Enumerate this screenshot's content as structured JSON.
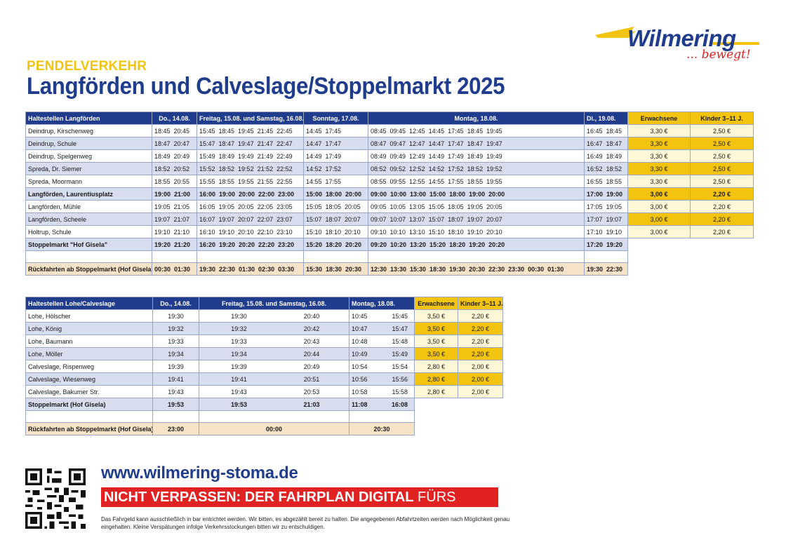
{
  "header": {
    "kicker": "PENDELVERKEHR",
    "title": "Langförden und Calveslage/Stoppelmarkt 2025",
    "logo_brand": "Wilmering",
    "logo_tagline": "... bewegt!"
  },
  "table1": {
    "headers": [
      "Haltestellen Langförden",
      "Do., 14.08.",
      "Freitag, 15.08. und Samstag, 16.08.",
      "Sonntag, 17.08.",
      "Montag, 18.08.",
      "Di., 19.08.",
      "Erwachsene",
      "Kinder 3–11 J."
    ],
    "rows": [
      {
        "stop": "Deindrup, Kirschenweg",
        "do": "18:45  20:45",
        "frsa": "15:45  18:45  19:45  21:45  22:45",
        "so": "14:45  17:45",
        "mo": "08:45  09:45  12:45  14:45  17:45  18:45  19:45",
        "di": "16:45  18:45",
        "adult": "3,30 €",
        "child": "2,50 €"
      },
      {
        "stop": "Deindrup, Schule",
        "do": "18:47  20:47",
        "frsa": "15:47  18:47  19:47  21:47  22:47",
        "so": "14:47  17:47",
        "mo": "08:47  09:47  12:47  14:47  17:47  18:47  19:47",
        "di": "16:47  18:47",
        "adult": "3,30 €",
        "child": "2,50 €"
      },
      {
        "stop": "Deindrup, Spelgenweg",
        "do": "18:49  20:49",
        "frsa": "15:49  18:49  19:49  21:49  22:49",
        "so": "14:49  17:49",
        "mo": "08:49  09:49  12:49  14:49  17:49  18:49  19:49",
        "di": "16:49  18:49",
        "adult": "3,30 €",
        "child": "2,50 €"
      },
      {
        "stop": "Spreda, Dr. Siemer",
        "do": "18:52  20:52",
        "frsa": "15:52  18:52  19:52  21:52  22:52",
        "so": "14:52  17:52",
        "mo": "08:52  09:52  12:52  14:52  17:52  18:52  19:52",
        "di": "16:52  18:52",
        "adult": "3,30 €",
        "child": "2,50 €"
      },
      {
        "stop": "Spreda, Moormann",
        "do": "18:55  20:55",
        "frsa": "15:55  18:55  19:55  21:55  22:55",
        "so": "14:55  17:55",
        "mo": "08:55  09:55  12:55  14:55  17:55  18:55  19:55",
        "di": "16:55  18:55",
        "adult": "3,30 €",
        "child": "2,50 €"
      },
      {
        "stop": "Langförden, Laurentiusplatz",
        "do": "19:00  21:00",
        "frsa": "16:00  19:00  20:00  22:00  23:00",
        "so": "15:00  18:00  20:00",
        "mo": "09:00  10:00  13:00  15:00  18:00  19:00  20:00",
        "di": "17:00  19:00",
        "adult": "3,00 €",
        "child": "2,20 €",
        "bold": true
      },
      {
        "stop": "Langförden, Mühle",
        "do": "19:05  21:05",
        "frsa": "16:05  19:05  20:05  22:05  23:05",
        "so": "15:05  18:05  20:05",
        "mo": "09:05  10:05  13:05  15:05  18:05  19:05  20:05",
        "di": "17:05  19:05",
        "adult": "3,00 €",
        "child": "2,20 €"
      },
      {
        "stop": "Langförden, Scheele",
        "do": "19:07  21:07",
        "frsa": "16:07  19:07  20:07  22:07  23:07",
        "so": "15:07  18:07  20:07",
        "mo": "09:07  10:07  13:07  15:07  18:07  19:07  20:07",
        "di": "17:07  19:07",
        "adult": "3,00 €",
        "child": "2,20 €"
      },
      {
        "stop": "Holtrup, Schule",
        "do": "19:10  21:10",
        "frsa": "16:10  19:10  20:10  22:10  23:10",
        "so": "15:10  18:10  20:10",
        "mo": "09:10  10:10  13:10  15:10  18:10  19:10  20:10",
        "di": "17:10  19:10",
        "adult": "3,00 €",
        "child": "2,20 €"
      },
      {
        "stop": "Stoppelmarkt \"Hof Gisela\"",
        "do": "19:20  21:20",
        "frsa": "16:20  19:20  20:20  22:20  23:20",
        "so": "15:20  18:20  20:20",
        "mo": "09:20  10:20  13:20  15:20  18:20  19:20  20:20",
        "di": "17:20  19:20",
        "adult": "",
        "child": "",
        "bold": true
      }
    ],
    "return": {
      "stop": "Rückfahrten ab Stoppelmarkt (Hof Gisela)",
      "do": "00:30  01:30",
      "frsa": "19:30  22:30  01:30  02:30  03:30",
      "so": "15:30  18:30  20:30",
      "mo": "12:30  13:30  15:30  18:30  19:30  20:30  22:30  23:30  00:30  01:30",
      "di": "19:30  22:30"
    }
  },
  "table2": {
    "headers": [
      "Haltestellen Lohe/Calveslage",
      "Do., 14.08.",
      "Freitag, 15.08. und Samstag, 16.08.",
      "Montag, 18.08.",
      "Erwachsene",
      "Kinder 3–11 J."
    ],
    "rows": [
      {
        "stop": "Lohe, Hölscher",
        "do": "19:30",
        "fr1": "19:30",
        "fr2": "20:40",
        "mo1": "10:45",
        "mo2": "15:45",
        "adult": "3,50 €",
        "child": "2,20 €"
      },
      {
        "stop": "Lohe, König",
        "do": "19:32",
        "fr1": "19:32",
        "fr2": "20:42",
        "mo1": "10:47",
        "mo2": "15:47",
        "adult": "3,50 €",
        "child": "2,20 €"
      },
      {
        "stop": "Lohe, Baumann",
        "do": "19:33",
        "fr1": "19:33",
        "fr2": "20:43",
        "mo1": "10:48",
        "mo2": "15:48",
        "adult": "3,50 €",
        "child": "2,20 €"
      },
      {
        "stop": "Lohe, Möller",
        "do": "19:34",
        "fr1": "19:34",
        "fr2": "20:44",
        "mo1": "10:49",
        "mo2": "15:49",
        "adult": "3,50 €",
        "child": "2,20 €"
      },
      {
        "stop": "Calveslage, Rispenweg",
        "do": "19:39",
        "fr1": "19:39",
        "fr2": "20:49",
        "mo1": "10:54",
        "mo2": "15:54",
        "adult": "2,80 €",
        "child": "2,00 €"
      },
      {
        "stop": "Calveslage, Wiesenweg",
        "do": "19:41",
        "fr1": "19:41",
        "fr2": "20:51",
        "mo1": "10:56",
        "mo2": "15:56",
        "adult": "2,80 €",
        "child": "2,00 €"
      },
      {
        "stop": "Calveslage, Bakumer Str.",
        "do": "19:43",
        "fr1": "19:43",
        "fr2": "20:53",
        "mo1": "10:58",
        "mo2": "15:58",
        "adult": "2,80 €",
        "child": "2,00 €"
      },
      {
        "stop": "Stoppelmarkt (Hof Gisela)",
        "do": "19:53",
        "fr1": "19:53",
        "fr2": "21:03",
        "mo1": "11:08",
        "mo2": "16:08",
        "adult": "",
        "child": "",
        "bold": true
      }
    ],
    "return": {
      "stop": "Rückfahrten ab Stoppelmarkt (Hof Gisela)",
      "do": "23:00",
      "fr": "00:00",
      "mo": "20:30"
    }
  },
  "footer": {
    "url": "www.wilmering-stoma.de",
    "banner_bold": "NICHT VERPASSEN: DER FAHRPLAN DIGITAL",
    "banner_rest": " FÜRS SMARTPHONE!",
    "note": "Das Fahrgeld kann ausschließlich in bar entrichtet werden. Wir bitten, es abgezählt bereit zu halten. Die angegebenen Abfahrtzeiten werden nach Möglichkeit genau eingehalten. Kleine Verspätungen infolge Verkehrsstockungen bitten wir zu entschuldigen.",
    "qr_icon": "qr-code-icon"
  },
  "colors": {
    "navy": "#1f3d8c",
    "yellow": "#f2c40f",
    "red": "#e02222",
    "stripe": "#d7dcef",
    "return_bg": "#f7e3c8"
  }
}
